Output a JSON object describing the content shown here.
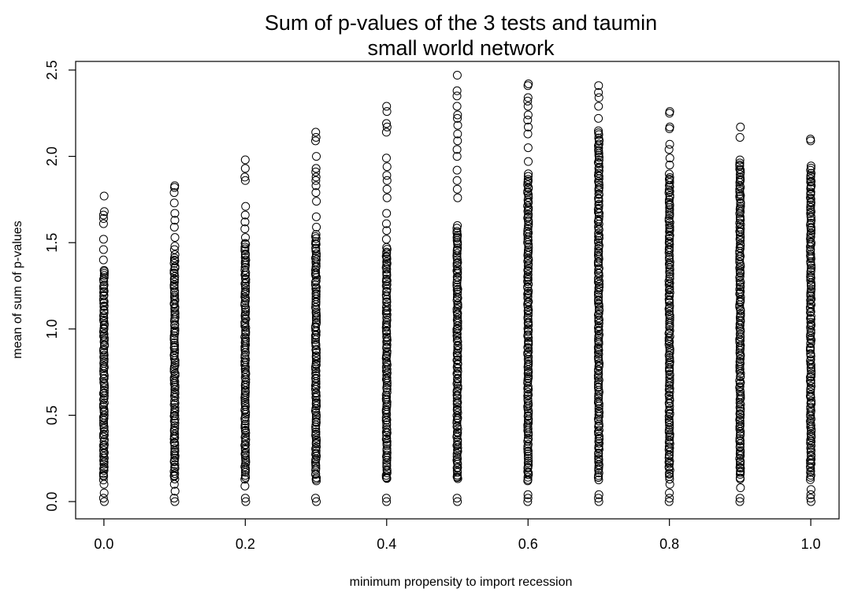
{
  "chart_data": {
    "type": "scatter",
    "title": "Sum of p-values of the 3 tests and taumin",
    "subtitle": "small world network",
    "xlabel": "minimum propensity to import recession",
    "ylabel": "mean of sum of p-values",
    "xlim": [
      -0.04,
      1.04
    ],
    "ylim": [
      -0.1,
      2.55
    ],
    "x_ticks": [
      "0.0",
      "0.2",
      "0.4",
      "0.6",
      "0.8",
      "1.0"
    ],
    "y_ticks": [
      "0.0",
      "0.5",
      "1.0",
      "1.5",
      "2.0",
      "2.5"
    ],
    "grid": false,
    "legend": "none",
    "marker": "open-circle",
    "groups": [
      {
        "x": 0.0,
        "max": 1.77,
        "dense_top": 1.35,
        "low_cluster": [
          0.0,
          0.02,
          0.05,
          0.1
        ],
        "outliers": [
          1.77,
          1.68,
          1.66,
          1.64,
          1.61,
          1.52,
          1.46,
          1.4
        ]
      },
      {
        "x": 0.1,
        "max": 1.83,
        "dense_top": 1.43,
        "low_cluster": [
          0.0,
          0.02,
          0.06,
          0.1
        ],
        "outliers": [
          1.83,
          1.82,
          1.79,
          1.73,
          1.67,
          1.63,
          1.59,
          1.53,
          1.48,
          1.46
        ]
      },
      {
        "x": 0.2,
        "max": 1.98,
        "dense_top": 1.5,
        "low_cluster": [
          0.0,
          0.02,
          0.09
        ],
        "outliers": [
          1.98,
          1.93,
          1.88,
          1.86,
          1.71,
          1.66,
          1.62,
          1.58,
          1.53
        ]
      },
      {
        "x": 0.3,
        "max": 2.14,
        "dense_top": 1.55,
        "low_cluster": [
          0.0,
          0.02,
          0.12
        ],
        "outliers": [
          2.14,
          2.11,
          2.09,
          2.0,
          1.93,
          1.91,
          1.88,
          1.86,
          1.83,
          1.79,
          1.74,
          1.65,
          1.59
        ]
      },
      {
        "x": 0.4,
        "max": 2.29,
        "dense_top": 1.48,
        "low_cluster": [
          0.0,
          0.02,
          0.14
        ],
        "outliers": [
          2.29,
          2.26,
          2.19,
          2.17,
          2.14,
          1.99,
          1.94,
          1.89,
          1.86,
          1.81,
          1.76,
          1.67,
          1.61,
          1.57,
          1.52
        ]
      },
      {
        "x": 0.5,
        "max": 2.47,
        "dense_top": 1.6,
        "low_cluster": [
          0.0,
          0.02,
          0.14
        ],
        "outliers": [
          2.47,
          2.38,
          2.35,
          2.29,
          2.24,
          2.22,
          2.18,
          2.13,
          2.09,
          2.04,
          2.0,
          1.92,
          1.86,
          1.81,
          1.76
        ]
      },
      {
        "x": 0.6,
        "max": 2.42,
        "dense_top": 1.9,
        "low_cluster": [
          0.0,
          0.02,
          0.04,
          0.12
        ],
        "outliers": [
          2.42,
          2.41,
          2.34,
          2.32,
          2.29,
          2.24,
          2.21,
          2.17,
          2.13,
          2.05,
          1.97
        ]
      },
      {
        "x": 0.7,
        "max": 2.41,
        "dense_top": 2.15,
        "low_cluster": [
          0.0,
          0.02,
          0.04,
          0.14
        ],
        "outliers": [
          2.41,
          2.37,
          2.34,
          2.29,
          2.22
        ]
      },
      {
        "x": 0.8,
        "max": 2.26,
        "dense_top": 1.9,
        "low_cluster": [
          0.0,
          0.02,
          0.05,
          0.1
        ],
        "outliers": [
          2.26,
          2.25,
          2.17,
          2.16,
          2.07,
          2.04,
          1.99,
          1.95
        ]
      },
      {
        "x": 0.9,
        "max": 2.17,
        "dense_top": 1.99,
        "low_cluster": [
          0.0,
          0.02,
          0.08
        ],
        "outliers": [
          2.17,
          2.11
        ]
      },
      {
        "x": 1.0,
        "max": 2.1,
        "dense_top": 1.95,
        "low_cluster": [
          0.0,
          0.02,
          0.04,
          0.07
        ],
        "outliers": [
          2.1,
          2.09
        ]
      }
    ]
  }
}
